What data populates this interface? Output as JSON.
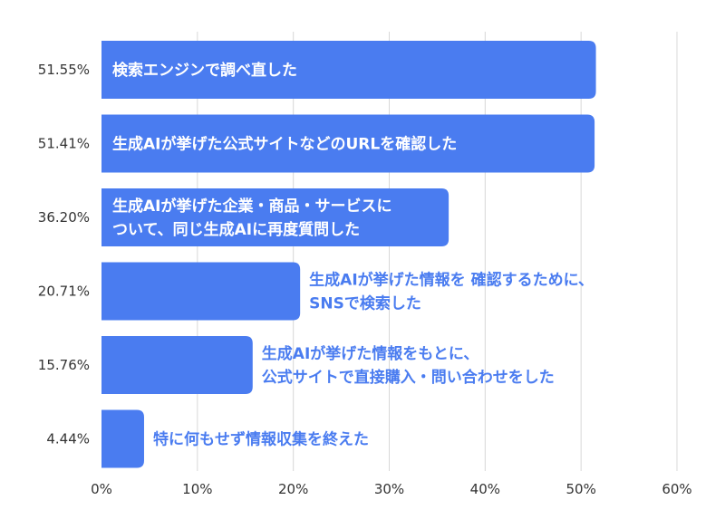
{
  "chart_data": {
    "type": "bar",
    "orientation": "horizontal",
    "title": "",
    "xlabel": "",
    "ylabel": "",
    "xlim": [
      0,
      60
    ],
    "grid": true,
    "legend": "none",
    "x_ticks": [
      "0%",
      "10%",
      "20%",
      "30%",
      "40%",
      "50%",
      "60%"
    ],
    "bar_color": "#4a7cf0",
    "label_color_inside": "#ffffff",
    "label_color_outside": "#4a7cf0",
    "categories": [
      [
        "検索エンジンで調べ直した"
      ],
      [
        "生成AIが挙げた公式サイトなどのURLを確認した"
      ],
      [
        "生成AIが挙げた企業・商品・サービスに",
        "ついて、同じ生成AIに再度質問した"
      ],
      [
        "生成AIが挙げた情報を 確認するために、",
        "SNSで検索した"
      ],
      [
        "生成AIが挙げた情報をもとに、",
        "公式サイトで直接購入・問い合わせをした"
      ],
      [
        "特に何もせず情報収集を終えた"
      ]
    ],
    "values": [
      51.55,
      51.41,
      36.2,
      20.71,
      15.76,
      4.44
    ],
    "value_labels": [
      "51.55%",
      "51.41%",
      "36.20%",
      "20.71%",
      "15.76%",
      "4.44%"
    ]
  }
}
